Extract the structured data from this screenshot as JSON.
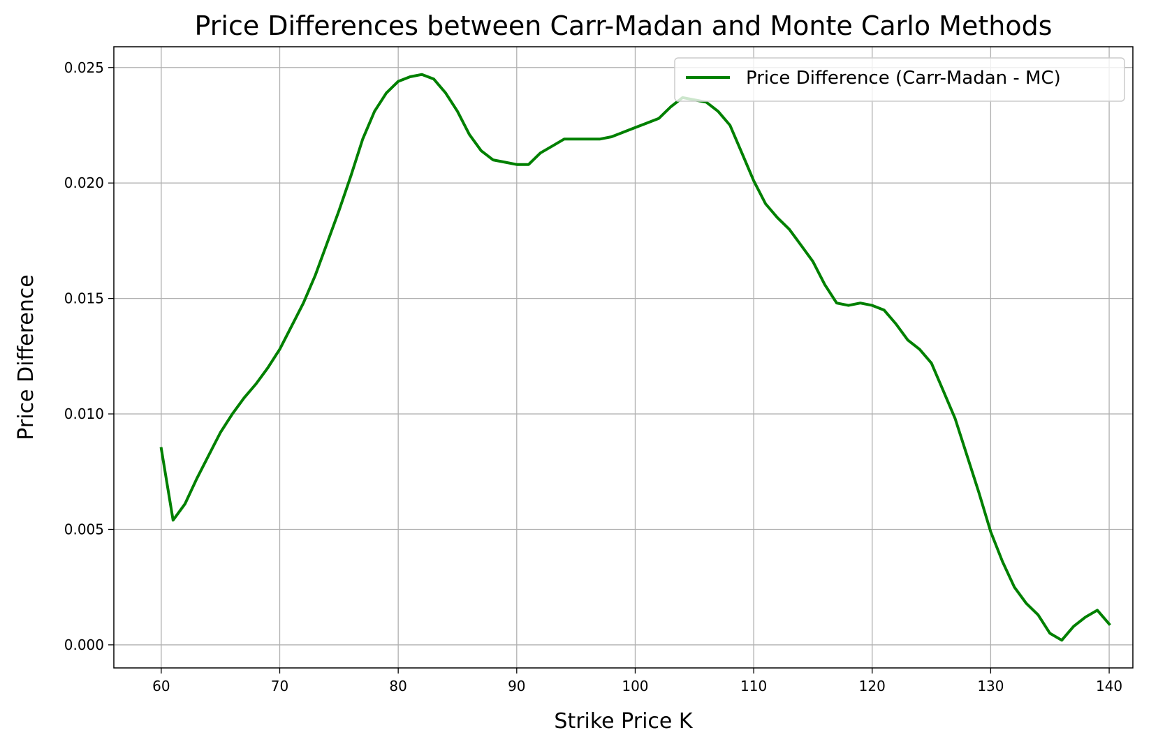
{
  "chart_data": {
    "type": "line",
    "title": "Price Differences between Carr-Madan and Monte Carlo Methods",
    "xlabel": "Strike Price K",
    "ylabel": "Price Difference",
    "xlim": [
      56,
      142
    ],
    "ylim": [
      -0.001,
      0.0259
    ],
    "xticks": [
      60,
      70,
      80,
      90,
      100,
      110,
      120,
      130,
      140
    ],
    "xtick_labels": [
      "60",
      "70",
      "80",
      "90",
      "100",
      "110",
      "120",
      "130",
      "140"
    ],
    "yticks": [
      0.0,
      0.005,
      0.01,
      0.015,
      0.02,
      0.025
    ],
    "ytick_labels": [
      "0.000",
      "0.005",
      "0.010",
      "0.015",
      "0.020",
      "0.025"
    ],
    "grid": true,
    "legend_position": "top-right",
    "colors": {
      "line": "#008000",
      "grid": "#b0b0b0",
      "axes": "#000000"
    },
    "series": [
      {
        "name": "Price Difference (Carr-Madan - MC)",
        "x": [
          60,
          61,
          62,
          63,
          64,
          65,
          66,
          67,
          68,
          69,
          70,
          71,
          72,
          73,
          74,
          75,
          76,
          77,
          78,
          79,
          80,
          81,
          82,
          83,
          84,
          85,
          86,
          87,
          88,
          89,
          90,
          91,
          92,
          93,
          94,
          95,
          96,
          97,
          98,
          99,
          100,
          101,
          102,
          103,
          104,
          105,
          106,
          107,
          108,
          109,
          110,
          111,
          112,
          113,
          114,
          115,
          116,
          117,
          118,
          119,
          120,
          121,
          122,
          123,
          124,
          125,
          126,
          127,
          128,
          129,
          130,
          131,
          132,
          133,
          134,
          135,
          136,
          137,
          138,
          139,
          140
        ],
        "y": [
          0.0085,
          0.0054,
          0.0061,
          0.0072,
          0.0082,
          0.0092,
          0.01,
          0.0107,
          0.0113,
          0.012,
          0.0128,
          0.0138,
          0.0148,
          0.016,
          0.0174,
          0.0188,
          0.0203,
          0.0219,
          0.0231,
          0.0239,
          0.0244,
          0.0246,
          0.0247,
          0.0245,
          0.0239,
          0.0231,
          0.0221,
          0.0214,
          0.021,
          0.0209,
          0.0208,
          0.0208,
          0.0213,
          0.0216,
          0.0219,
          0.0219,
          0.0219,
          0.0219,
          0.022,
          0.0222,
          0.0224,
          0.0226,
          0.0228,
          0.0233,
          0.0237,
          0.0236,
          0.0235,
          0.0231,
          0.0225,
          0.0213,
          0.0201,
          0.0191,
          0.0185,
          0.018,
          0.0173,
          0.0166,
          0.0156,
          0.0148,
          0.0147,
          0.0148,
          0.0147,
          0.0145,
          0.0139,
          0.0132,
          0.0128,
          0.0122,
          0.011,
          0.0098,
          0.0082,
          0.0066,
          0.0049,
          0.0036,
          0.0025,
          0.0018,
          0.0013,
          0.0005,
          0.0002,
          0.0008,
          0.0012,
          0.0015,
          0.0009
        ]
      }
    ]
  }
}
